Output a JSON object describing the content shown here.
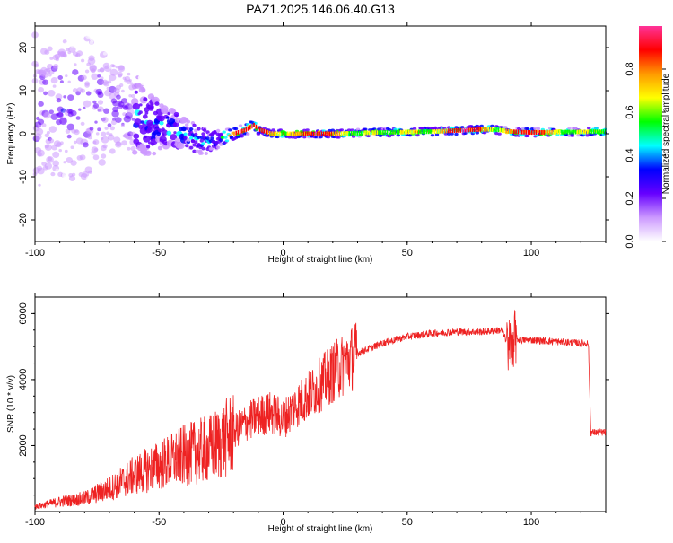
{
  "figure": {
    "title": "PAZ1.2025.146.06.40.G13"
  },
  "chart_data": [
    {
      "type": "heatmap",
      "xlabel": "Height of straight line (km)",
      "ylabel": "Frequency (Hz)",
      "xlim": [
        -100,
        130
      ],
      "ylim": [
        -25,
        25
      ],
      "xticks": [
        -100,
        -50,
        0,
        50,
        100
      ],
      "yticks": [
        -20,
        -10,
        0,
        10,
        20
      ],
      "colorbar": {
        "label": "Normalized spectral amplitude",
        "range": [
          0,
          1
        ],
        "ticks": [
          "0.0",
          "0.2",
          "0.4",
          "0.6",
          "0.8"
        ],
        "colors": [
          "#ffffff",
          "#cc99ff",
          "#6600ff",
          "#0000ff",
          "#00ffff",
          "#00ff00",
          "#ffff00",
          "#ff9900",
          "#ff0000",
          "#ff3399"
        ]
      },
      "ridge": {
        "x": [
          -100,
          -80,
          -70,
          -60,
          -50,
          -40,
          -35,
          -30,
          -25,
          -20,
          -15,
          -12,
          -10,
          -5,
          0,
          20,
          40,
          60,
          80,
          85,
          90,
          95,
          100,
          130
        ],
        "freq_hz": [
          5,
          6,
          7,
          4,
          2,
          0,
          -1,
          -2,
          -1,
          0,
          1,
          2,
          1,
          0,
          0,
          0,
          0.3,
          0.5,
          1,
          1,
          0.6,
          0.4,
          0.3,
          0.5
        ],
        "spread_hz": [
          18,
          16,
          12,
          9,
          6,
          4,
          4,
          3,
          2,
          1.5,
          1.5,
          1.5,
          1.2,
          1,
          1,
          1,
          1,
          1,
          1,
          1,
          1,
          1,
          1,
          1
        ]
      },
      "grid": false
    },
    {
      "type": "line",
      "xlabel": "Height of straight line (km)",
      "ylabel": "SNR (10 * v/v)",
      "xlim": [
        -100,
        130
      ],
      "ylim": [
        0,
        6500
      ],
      "xticks": [
        -100,
        -50,
        0,
        50,
        100
      ],
      "yticks": [
        2000,
        4000,
        6000
      ],
      "color": "#ee2222",
      "series": [
        {
          "x": [
            -100,
            -90,
            -80,
            -70,
            -60,
            -50,
            -40,
            -30,
            -25,
            -20,
            -15,
            -10,
            -5,
            0,
            5,
            10,
            20,
            30,
            40,
            50,
            60,
            70,
            80,
            88,
            91,
            93,
            95,
            100,
            110,
            120,
            123,
            124,
            130
          ],
          "y": [
            150,
            300,
            400,
            700,
            1100,
            1400,
            1700,
            1900,
            2100,
            2400,
            2700,
            2900,
            3000,
            2800,
            3200,
            3500,
            4200,
            4800,
            5100,
            5300,
            5400,
            5450,
            5450,
            5500,
            5000,
            5300,
            5200,
            5200,
            5150,
            5100,
            5100,
            2400,
            2400
          ]
        }
      ],
      "grid": false
    }
  ]
}
